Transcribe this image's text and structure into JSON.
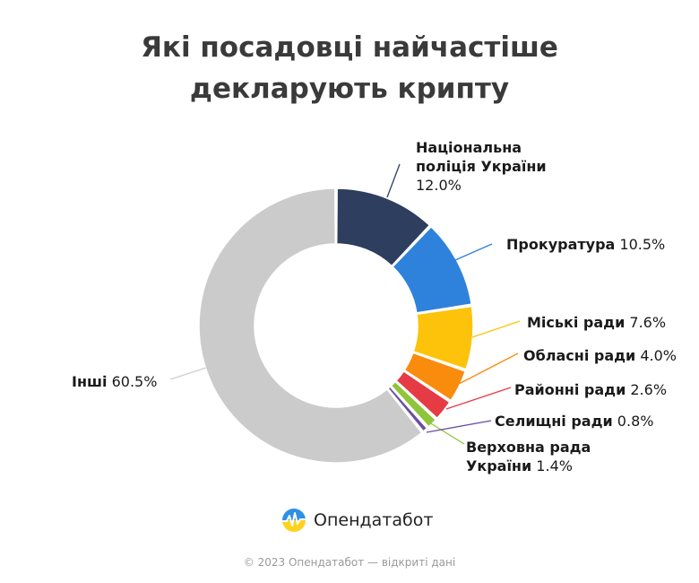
{
  "chart_data": {
    "type": "pie",
    "title_lines": [
      "Які посадовці найчастіше",
      "декларують крипту"
    ],
    "slices": [
      {
        "label_lines": [
          "Національна",
          "поліція України"
        ],
        "value": 12.0,
        "value_text": "12.0%",
        "color": "#2d3e5f"
      },
      {
        "label_lines": [
          "Прокуратура"
        ],
        "value": 10.5,
        "value_text": "10.5%",
        "color": "#2e82dc"
      },
      {
        "label_lines": [
          "Міські ради"
        ],
        "value": 7.6,
        "value_text": "7.6%",
        "color": "#fcc30a"
      },
      {
        "label_lines": [
          "Обласні ради"
        ],
        "value": 4.0,
        "value_text": "4.0%",
        "color": "#f98b0d"
      },
      {
        "label_lines": [
          "Районні ради"
        ],
        "value": 2.6,
        "value_text": "2.6%",
        "color": "#e63a44"
      },
      {
        "label_lines": [
          "Верховна рада",
          "України"
        ],
        "value": 1.4,
        "value_text": "1.4%",
        "color": "#8fc53a"
      },
      {
        "label_lines": [
          "Селищні ради"
        ],
        "value": 0.8,
        "value_text": "0.8%",
        "color": "#6b4ea2"
      },
      {
        "label_lines": [
          "Інші"
        ],
        "value": 60.5,
        "value_text": "60.5%",
        "color": "#cbcbcb"
      }
    ]
  },
  "brand": {
    "name": "Опендатабот"
  },
  "footer": {
    "text": "© 2023 Опендатабот — відкриті дані"
  }
}
